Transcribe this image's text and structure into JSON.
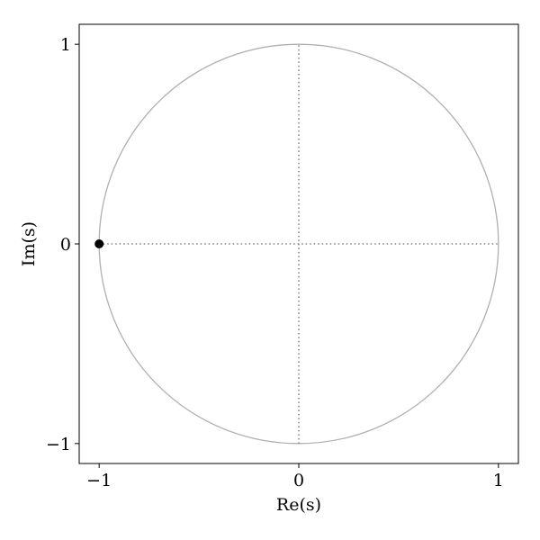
{
  "chart_data": {
    "type": "scatter",
    "title": "",
    "xlabel": "Re(s)",
    "ylabel": "Im(s)",
    "xlim": [
      -1.1,
      1.1
    ],
    "ylim": [
      -1.1,
      1.1
    ],
    "x_ticks": [
      {
        "value": -1,
        "label": "−1"
      },
      {
        "value": 0,
        "label": "0"
      },
      {
        "value": 1,
        "label": "1"
      }
    ],
    "y_ticks": [
      {
        "value": -1,
        "label": "−1"
      },
      {
        "value": 0,
        "label": "0"
      },
      {
        "value": 1,
        "label": "1"
      }
    ],
    "reference_circle": {
      "center": [
        0,
        0
      ],
      "radius": 1,
      "color": "#b0b0b0"
    },
    "reference_lines": [
      {
        "orientation": "horizontal",
        "value": 0,
        "from": -1,
        "to": 1,
        "style": "dotted",
        "color": "#808080"
      },
      {
        "orientation": "vertical",
        "value": 0,
        "from": -1,
        "to": 1,
        "style": "dotted",
        "color": "#808080"
      }
    ],
    "series": [
      {
        "points": [
          {
            "x": -1,
            "y": 0
          }
        ],
        "color": "#000000",
        "marker": "circle"
      }
    ],
    "grid": false,
    "legend": "none"
  }
}
